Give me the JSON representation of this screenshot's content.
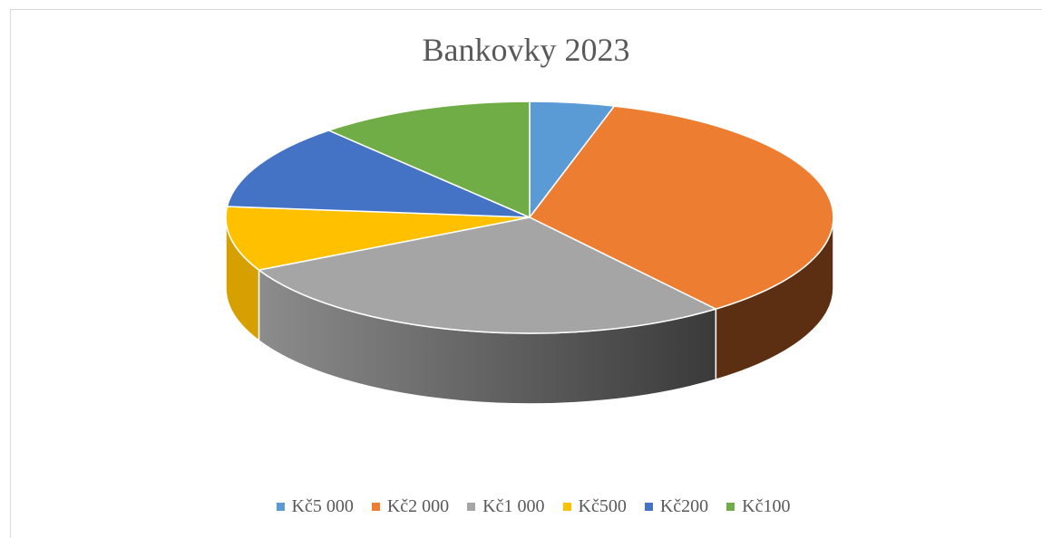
{
  "chart_data": {
    "type": "pie",
    "title": "Bankovky 2023",
    "legend_position": "bottom",
    "categories": [
      "Kč5 000",
      "Kč2 000",
      "Kč1 000",
      "Kč500",
      "Kč200",
      "Kč100"
    ],
    "values": [
      4.5,
      35,
      28,
      9,
      12,
      11.5
    ],
    "colors": [
      "#5b9bd5",
      "#ed7d31",
      "#a5a5a5",
      "#ffc000",
      "#4472c4",
      "#70ad47"
    ],
    "side_colors": [
      "#3f6f9e",
      "#5c2f12",
      "#6a6a6a",
      "#d6a000",
      "#2f4f8a",
      "#4f7a33"
    ]
  }
}
